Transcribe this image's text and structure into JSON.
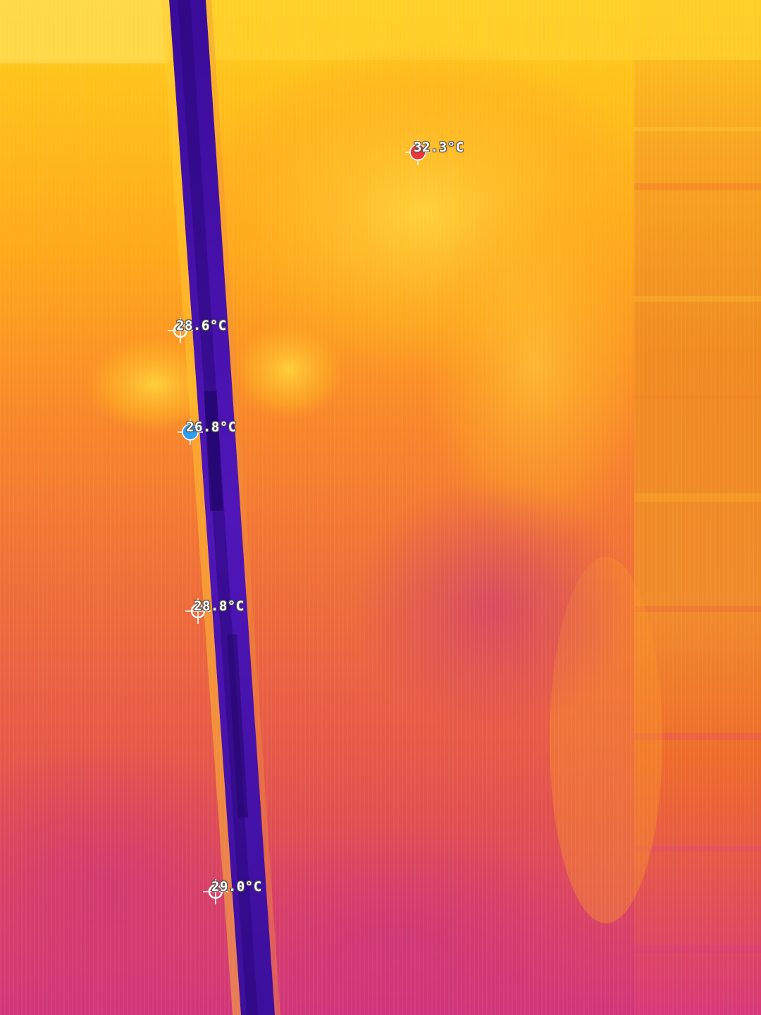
{
  "thermal_image": {
    "palette": "iron",
    "palette_colors": {
      "hot": "#ffe24a",
      "warm": "#ffa51c",
      "mid": "#f36d2b",
      "cool": "#d9407a",
      "coldest": "#4a12b8"
    },
    "spots": [
      {
        "id": "max",
        "label": "32.3°C",
        "marker": "hot-spot-marker",
        "marker_color": "#e8383a"
      },
      {
        "id": "spot1",
        "label": "28.6°C",
        "marker": "crosshair-marker",
        "marker_color": "#ffffff"
      },
      {
        "id": "min",
        "label": "26.8°C",
        "marker": "cold-spot-marker",
        "marker_color": "#2f9ff0"
      },
      {
        "id": "spot2",
        "label": "28.8°C",
        "marker": "crosshair-marker",
        "marker_color": "#ffffff"
      },
      {
        "id": "spot3",
        "label": "29.0°C",
        "marker": "crosshair-marker",
        "marker_color": "#ffffff"
      }
    ]
  }
}
